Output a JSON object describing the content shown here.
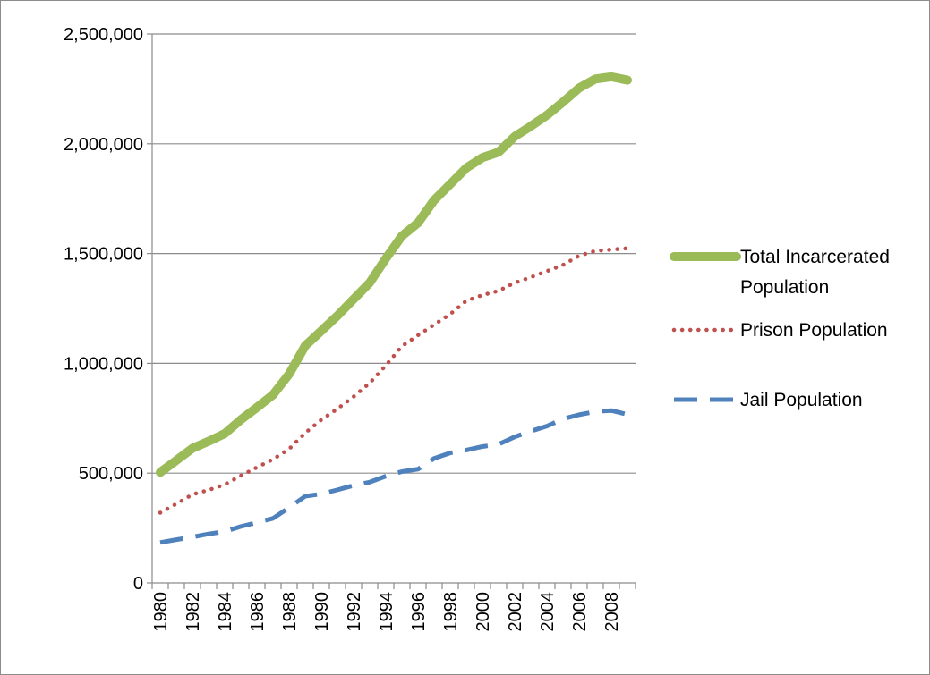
{
  "chart_data": {
    "type": "line",
    "title": "",
    "xlabel": "",
    "ylabel": "",
    "x": [
      1980,
      1981,
      1982,
      1983,
      1984,
      1985,
      1986,
      1987,
      1988,
      1989,
      1990,
      1991,
      1992,
      1993,
      1994,
      1995,
      1996,
      1997,
      1998,
      1999,
      2000,
      2001,
      2002,
      2003,
      2004,
      2005,
      2006,
      2007,
      2008,
      2009
    ],
    "x_tick_labels": [
      "1980",
      "1982",
      "1984",
      "1986",
      "1988",
      "1990",
      "1992",
      "1994",
      "1996",
      "1998",
      "2000",
      "2002",
      "2004",
      "2006",
      "2008"
    ],
    "ylim": [
      0,
      2500000
    ],
    "y_ticks": [
      0,
      500000,
      1000000,
      1500000,
      2000000,
      2500000
    ],
    "y_tick_labels": [
      "0",
      "500,000",
      "1,000,000",
      "1,500,000",
      "2,000,000",
      "2,500,000"
    ],
    "grid": "horizontal",
    "legend_position": "right",
    "series": [
      {
        "name": "Total Incarcerated Population",
        "style": "solid-thick",
        "color": "#9bbb59",
        "values": [
          503586,
          558000,
          613000,
          645000,
          680000,
          743000,
          799000,
          857000,
          951000,
          1080000,
          1148000,
          1217000,
          1292000,
          1367000,
          1477000,
          1580000,
          1640000,
          1743000,
          1816000,
          1890000,
          1937000,
          1962000,
          2033000,
          2080000,
          2130000,
          2190000,
          2254000,
          2295000,
          2305000,
          2290000
        ]
      },
      {
        "name": "Prison Population",
        "style": "dotted",
        "color": "#c0504d",
        "values": [
          319598,
          360000,
          403000,
          423000,
          448000,
          488000,
          526000,
          563000,
          610000,
          683000,
          743000,
          793000,
          848000,
          910000,
          990000,
          1078000,
          1128000,
          1176000,
          1224000,
          1285000,
          1311000,
          1330000,
          1367000,
          1392000,
          1420000,
          1448000,
          1490000,
          1512000,
          1518000,
          1524000
        ]
      },
      {
        "name": "Jail Population",
        "style": "dashed",
        "color": "#4f81bd",
        "values": [
          183988,
          197000,
          209000,
          223000,
          234000,
          257000,
          275000,
          294000,
          343000,
          395000,
          405000,
          424000,
          444000,
          459000,
          486000,
          507000,
          518000,
          567000,
          592000,
          605000,
          621000,
          631000,
          665000,
          691000,
          714000,
          747000,
          766000,
          780000,
          785000,
          767000
        ]
      }
    ]
  }
}
